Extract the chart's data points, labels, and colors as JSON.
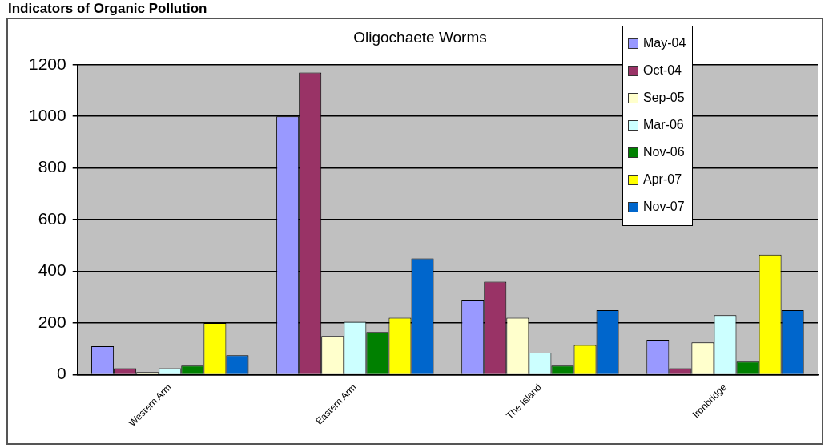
{
  "chart_data": {
    "type": "bar",
    "title": "Indicators of Organic Pollution",
    "subtitle": "Oligochaete Worms",
    "categories": [
      "Western Arm",
      "Eastern Arm",
      "The Island",
      "Ironbridge"
    ],
    "series": [
      {
        "name": "May-04",
        "color": "#9999ff",
        "values": [
          110,
          1000,
          290,
          135
        ]
      },
      {
        "name": "Oct-04",
        "color": "#993366",
        "values": [
          25,
          1170,
          360,
          25
        ]
      },
      {
        "name": "Sep-05",
        "color": "#ffffcc",
        "values": [
          10,
          150,
          220,
          125
        ]
      },
      {
        "name": "Mar-06",
        "color": "#ccffff",
        "values": [
          25,
          205,
          85,
          230
        ]
      },
      {
        "name": "Nov-06",
        "color": "#008000",
        "values": [
          35,
          165,
          35,
          50
        ]
      },
      {
        "name": "Apr-07",
        "color": "#ffff00",
        "values": [
          200,
          220,
          115,
          465
        ]
      },
      {
        "name": "Nov-07",
        "color": "#0066cc",
        "values": [
          75,
          450,
          250,
          250
        ]
      }
    ],
    "ylim": [
      0,
      1200
    ],
    "yticks": [
      0,
      200,
      400,
      600,
      800,
      1000,
      1200
    ],
    "grid": "y",
    "legend": "top right"
  }
}
